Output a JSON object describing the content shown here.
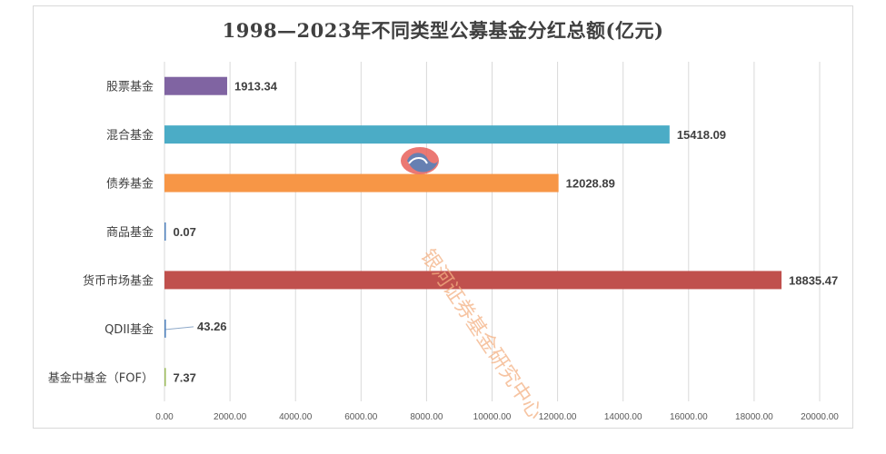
{
  "chart_data": {
    "type": "bar",
    "orientation": "horizontal",
    "title": "1998—2023年不同类型公募基金分红总额(亿元)",
    "categories": [
      "股票基金",
      "混合基金",
      "债券基金",
      "商品基金",
      "货币市场基金",
      "QDII基金",
      "基金中基金（FOF）"
    ],
    "values": [
      1913.34,
      15418.09,
      12028.89,
      0.07,
      18835.47,
      43.26,
      7.37
    ],
    "data_labels": [
      "1913.34",
      "15418.09",
      "12028.89",
      "0.07",
      "18835.47",
      "43.26",
      "7.37"
    ],
    "colors": [
      "#8064a2",
      "#4bacc6",
      "#f79646",
      "#4f81bd",
      "#c0504d",
      "#4f81bd",
      "#9bbb59"
    ],
    "xlim": [
      0,
      20000
    ],
    "xticks": [
      0,
      2000,
      4000,
      6000,
      8000,
      10000,
      12000,
      14000,
      16000,
      18000,
      20000
    ],
    "xtick_labels": [
      "0.00",
      "2000.00",
      "4000.00",
      "6000.00",
      "8000.00",
      "10000.00",
      "12000.00",
      "14000.00",
      "16000.00",
      "18000.00",
      "20000.00"
    ],
    "grid": true,
    "legend": "none"
  },
  "watermark": {
    "text": "银河证券基金研究中心",
    "logo": "galaxy-securities-logo"
  }
}
